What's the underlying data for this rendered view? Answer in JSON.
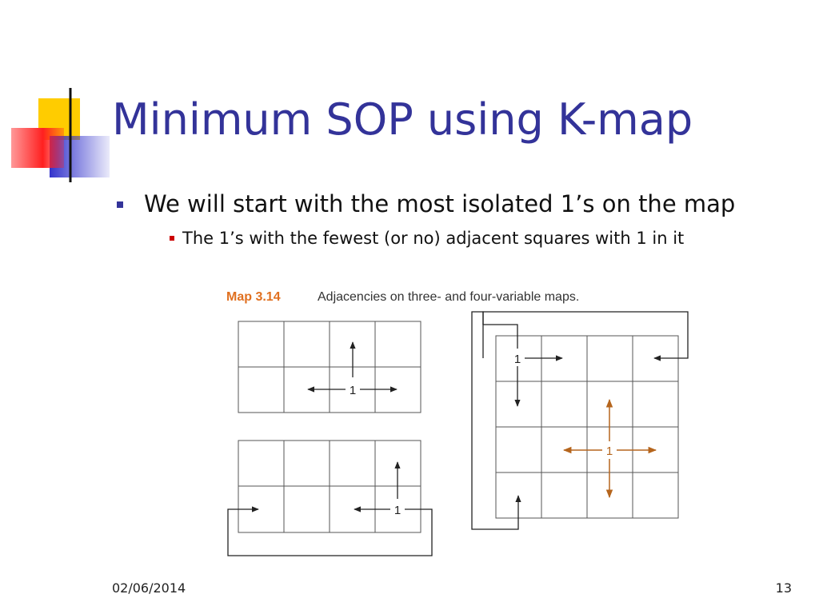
{
  "title": "Minimum SOP using K-map",
  "bullets": [
    {
      "text": "We will start with the most isolated 1’s on the map",
      "sub": [
        "The 1’s with the fewest (or no) adjacent squares with 1 in it"
      ]
    }
  ],
  "figure": {
    "label": "Map 3.14",
    "caption": "Adjacencies on three- and four-variable maps.",
    "maps": [
      {
        "marks": [
          "1"
        ]
      },
      {
        "marks": [
          "1"
        ]
      },
      {
        "marks": [
          "1",
          "1"
        ]
      }
    ]
  },
  "footer": {
    "date": "02/06/2014",
    "page": "13"
  }
}
